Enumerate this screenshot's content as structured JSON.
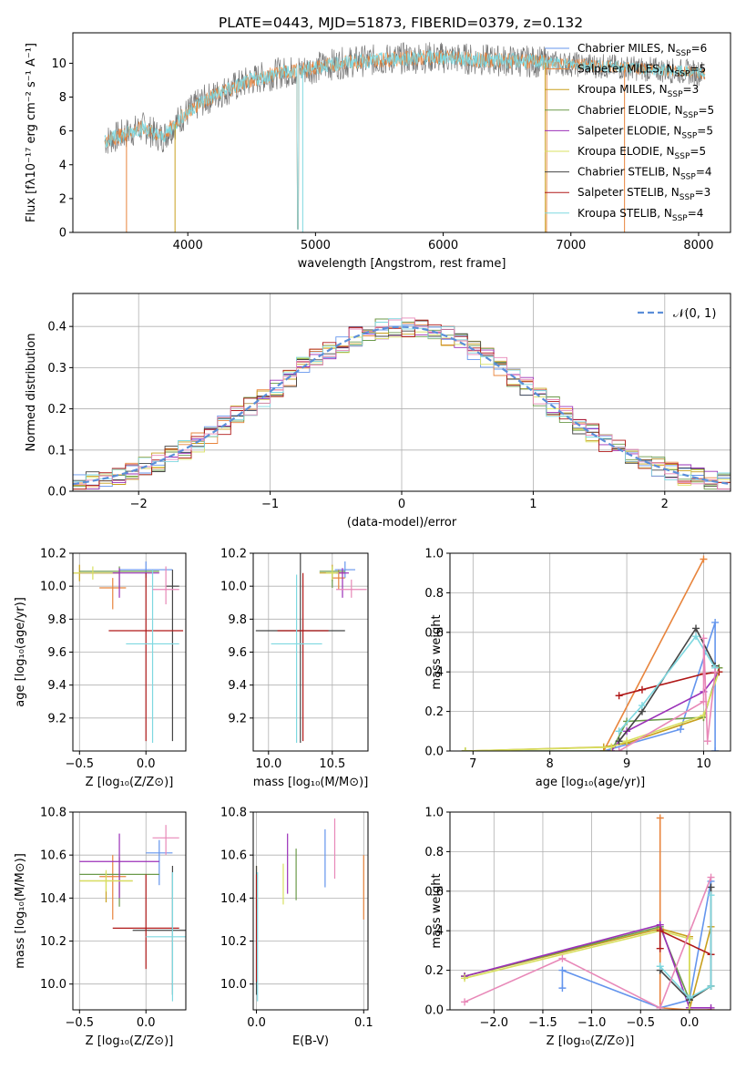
{
  "figure": {
    "title": "PLATE=0443, MJD=51873, FIBERID=0379, z=0.132"
  },
  "chart_data": [
    {
      "id": "spectrum",
      "type": "line",
      "title": "PLATE=0443, MJD=51873, FIBERID=0379, z=0.132",
      "xlabel": "wavelength [Angstrom, rest frame]",
      "ylabel": "Flux [fλ10⁻¹⁷ erg cm⁻² s⁻¹ A⁻¹]",
      "xlim": [
        3100,
        8250
      ],
      "ylim": [
        0,
        11.8
      ],
      "xticks": [
        "4000",
        "5000",
        "6000",
        "7000",
        "8000"
      ],
      "yticks": [
        "0",
        "2",
        "4",
        "6",
        "8",
        "10"
      ],
      "grid": false,
      "legend_position": "right",
      "spectrum_outline": {
        "x": [
          3350,
          3500,
          3650,
          3800,
          3950,
          4100,
          4300,
          4500,
          4700,
          4900,
          5100,
          5300,
          5500,
          5700,
          5900,
          6100,
          6300,
          6500,
          6700,
          6900,
          7100,
          7300,
          7500,
          7700,
          7900,
          8050
        ],
        "y": [
          5.4,
          5.8,
          6.2,
          5.6,
          6.8,
          7.7,
          8.4,
          9.0,
          9.4,
          9.6,
          9.9,
          10.1,
          10.2,
          10.3,
          10.35,
          10.3,
          10.2,
          10.15,
          10.1,
          10.0,
          9.9,
          9.8,
          9.7,
          9.6,
          9.5,
          9.4
        ]
      },
      "series": [
        {
          "name": "Chabrier MILES, N_SSP=6",
          "color": "#6495ed",
          "legend": [
            "Chabrier MILES, N",
            "SSP",
            "=6"
          ]
        },
        {
          "name": "Salpeter MILES, N_SSP=5",
          "color": "#e8843c",
          "legend": [
            "Salpeter MILES, N",
            "SSP",
            "=5"
          ]
        },
        {
          "name": "Kroupa MILES, N_SSP=3",
          "color": "#c8a01e",
          "legend": [
            "Kroupa MILES, N",
            "SSP",
            "=3"
          ]
        },
        {
          "name": "Chabrier ELODIE, N_SSP=5",
          "color": "#6b9a4a",
          "legend": [
            "Chabrier ELODIE, N",
            "SSP",
            "=5"
          ]
        },
        {
          "name": "Salpeter ELODIE, N_SSP=5",
          "color": "#9b30b8",
          "legend": [
            "Salpeter ELODIE, N",
            "SSP",
            "=5"
          ]
        },
        {
          "name": "Kroupa ELODIE, N_SSP=5",
          "color": "#d8e060",
          "legend": [
            "Kroupa ELODIE, N",
            "SSP",
            "=5"
          ]
        },
        {
          "name": "Chabrier STELIB, N_SSP=4",
          "color": "#444444",
          "legend": [
            "Chabrier STELIB, N",
            "SSP",
            "=4"
          ]
        },
        {
          "name": "Salpeter STELIB, N_SSP=3",
          "color": "#b01818",
          "legend": [
            "Salpeter STELIB, N",
            "SSP",
            "=3"
          ]
        },
        {
          "name": "Kroupa STELIB, N_SSP=4",
          "color": "#7ed8e0",
          "legend": [
            "Kroupa STELIB, N",
            "SSP",
            "=4"
          ]
        }
      ]
    },
    {
      "id": "residuals",
      "type": "bar",
      "xlabel": "(data-model)/error",
      "ylabel": "Normed distribution",
      "xlim": [
        -2.5,
        2.5
      ],
      "ylim": [
        0,
        0.48
      ],
      "xticks": [
        "−2",
        "−1",
        "0",
        "1",
        "2"
      ],
      "yticks": [
        "0.0",
        "0.1",
        "0.2",
        "0.3",
        "0.4"
      ],
      "grid": true,
      "legend_position": "top-right",
      "legend_label": "𝒩(0, 1)",
      "bin_width": 0.1,
      "histogram_colors": [
        "#6495ed",
        "#e8843c",
        "#c8a01e",
        "#6b9a4a",
        "#9b30b8",
        "#d8e060",
        "#444444",
        "#b01818",
        "#7ed8e0",
        "#e888b8"
      ]
    },
    {
      "id": "age-vs-Z",
      "type": "scatter",
      "xlabel": "Z [log₁₀(Z/Z⊙)]",
      "ylabel": "age  [log₁₀(age/yr)]",
      "xlim": [
        -0.55,
        0.3
      ],
      "ylim": [
        9.0,
        10.2
      ],
      "xticks": [
        "−0.5",
        "0.0"
      ],
      "yticks": [
        "9.2",
        "9.4",
        "9.6",
        "9.8",
        "10.0",
        "10.2"
      ],
      "grid": true,
      "points": [
        {
          "x": 0.0,
          "y": 10.1,
          "xerr": 0.2,
          "yerr_lo": 0.05,
          "yerr_hi": 0.05,
          "color": "#6495ed"
        },
        {
          "x": -0.25,
          "y": 9.99,
          "xerr": 0.1,
          "yerr_lo": 0.13,
          "yerr_hi": 0.06,
          "color": "#e8843c"
        },
        {
          "x": -0.5,
          "y": 10.08,
          "xerr": 0.3,
          "yerr_lo": 0.05,
          "yerr_hi": 0.05,
          "color": "#c8a01e"
        },
        {
          "x": -0.2,
          "y": 10.09,
          "xerr": 0.3,
          "yerr_lo": 0.1,
          "yerr_hi": 0.03,
          "color": "#6b9a4a"
        },
        {
          "x": -0.2,
          "y": 10.08,
          "xerr": 0.3,
          "yerr_lo": 0.15,
          "yerr_hi": 0.03,
          "color": "#9b30b8"
        },
        {
          "x": -0.4,
          "y": 10.08,
          "xerr": 0.15,
          "yerr_lo": 0.04,
          "yerr_hi": 0.04,
          "color": "#d8e060"
        },
        {
          "x": 0.2,
          "y": 10.0,
          "xerr": 0.05,
          "yerr_lo": 0.94,
          "yerr_hi": 0.1,
          "color": "#444444"
        },
        {
          "x": 0.0,
          "y": 9.73,
          "xerr": 0.28,
          "yerr_lo": 0.67,
          "yerr_hi": 0.35,
          "color": "#b01818"
        },
        {
          "x": 0.05,
          "y": 9.65,
          "xerr": 0.2,
          "yerr_lo": 0.6,
          "yerr_hi": 0.45,
          "color": "#7ed8e0"
        },
        {
          "x": 0.15,
          "y": 9.98,
          "xerr": 0.1,
          "yerr_lo": 0.09,
          "yerr_hi": 0.14,
          "color": "#e888b8"
        }
      ]
    },
    {
      "id": "age-vs-mass",
      "type": "scatter",
      "xlabel": "mass [log₁₀(M/M⊙)]",
      "ylabel": "",
      "xlim": [
        9.88,
        10.78
      ],
      "ylim": [
        9.0,
        10.2
      ],
      "xticks": [
        "10.0",
        "10.5"
      ],
      "yticks": [
        "9.2",
        "9.4",
        "9.6",
        "9.8",
        "10.0",
        "10.2"
      ],
      "grid": true,
      "points": [
        {
          "x": 10.6,
          "y": 10.1,
          "xerr": 0.08,
          "yerr_lo": 0.05,
          "yerr_hi": 0.05,
          "color": "#6495ed"
        },
        {
          "x": 10.55,
          "y": 10.05,
          "xerr": 0.05,
          "yerr_lo": 0.07,
          "yerr_hi": 0.05,
          "color": "#e8843c"
        },
        {
          "x": 10.5,
          "y": 10.08,
          "xerr": 0.1,
          "yerr_lo": 0.05,
          "yerr_hi": 0.05,
          "color": "#c8a01e"
        },
        {
          "x": 10.5,
          "y": 10.09,
          "xerr": 0.1,
          "yerr_lo": 0.1,
          "yerr_hi": 0.03,
          "color": "#6b9a4a"
        },
        {
          "x": 10.58,
          "y": 10.08,
          "xerr": 0.05,
          "yerr_lo": 0.15,
          "yerr_hi": 0.03,
          "color": "#9b30b8"
        },
        {
          "x": 10.5,
          "y": 10.08,
          "xerr": 0.05,
          "yerr_lo": 0.04,
          "yerr_hi": 0.04,
          "color": "#d8e060"
        },
        {
          "x": 10.25,
          "y": 9.73,
          "xerr": 0.35,
          "yerr_lo": 0.68,
          "yerr_hi": 0.5,
          "color": "#444444"
        },
        {
          "x": 10.27,
          "y": 9.73,
          "xerr": 0.2,
          "yerr_lo": 0.67,
          "yerr_hi": 0.35,
          "color": "#b01818"
        },
        {
          "x": 10.22,
          "y": 9.65,
          "xerr": 0.2,
          "yerr_lo": 0.6,
          "yerr_hi": 0.42,
          "color": "#7ed8e0"
        },
        {
          "x": 10.65,
          "y": 9.98,
          "xerr": 0.12,
          "yerr_lo": 0.05,
          "yerr_hi": 0.06,
          "color": "#e888b8"
        }
      ]
    },
    {
      "id": "massweight-vs-age",
      "type": "line",
      "xlabel": "age  [log₁₀(age/yr)]",
      "ylabel": "mass weight",
      "xlim": [
        6.7,
        10.35
      ],
      "ylim": [
        0,
        1.0
      ],
      "xticks": [
        "7",
        "8",
        "9",
        "10"
      ],
      "yticks": [
        "0.0",
        "0.2",
        "0.4",
        "0.6",
        "0.8",
        "1.0"
      ],
      "grid": true,
      "series": [
        {
          "color": "#6495ed",
          "x": [
            8.7,
            9.7,
            10.15,
            10.15
          ],
          "y": [
            0.0,
            0.11,
            0.65,
            0.0
          ]
        },
        {
          "color": "#e8843c",
          "x": [
            8.7,
            10.0
          ],
          "y": [
            0.0,
            0.97
          ]
        },
        {
          "color": "#c8a01e",
          "x": [
            6.9,
            8.7,
            9.0,
            10.0,
            10.2
          ],
          "y": [
            0.0,
            0.02,
            0.04,
            0.17,
            0.42
          ]
        },
        {
          "color": "#6b9a4a",
          "x": [
            6.9,
            8.8,
            9.0,
            10.0,
            10.2
          ],
          "y": [
            0.0,
            0.0,
            0.15,
            0.17,
            0.42
          ]
        },
        {
          "color": "#9b30b8",
          "x": [
            8.8,
            9.0,
            10.0,
            10.2
          ],
          "y": [
            0.0,
            0.1,
            0.3,
            0.4
          ]
        },
        {
          "color": "#d8e060",
          "x": [
            6.9,
            8.8,
            9.0,
            10.0,
            10.2
          ],
          "y": [
            0.0,
            0.02,
            0.05,
            0.18,
            0.4
          ]
        },
        {
          "color": "#444444",
          "x": [
            8.9,
            9.2,
            9.9,
            10.15
          ],
          "y": [
            0.05,
            0.2,
            0.62,
            0.43
          ]
        },
        {
          "color": "#b01818",
          "x": [
            8.9,
            9.2,
            10.0,
            10.2
          ],
          "y": [
            0.28,
            0.31,
            0.39,
            0.4
          ]
        },
        {
          "color": "#7ed8e0",
          "x": [
            8.9,
            9.2,
            9.9,
            10.15
          ],
          "y": [
            0.1,
            0.23,
            0.58,
            0.42
          ]
        },
        {
          "color": "#e888b8",
          "x": [
            8.9,
            10.0,
            10.0,
            10.05,
            10.15
          ],
          "y": [
            0.0,
            0.25,
            0.57,
            0.05,
            0.4
          ]
        }
      ]
    },
    {
      "id": "mass-vs-Z",
      "type": "scatter",
      "xlabel": "Z [log₁₀(Z/Z⊙)]",
      "ylabel": "mass [log₁₀(M/M⊙)]",
      "xlim": [
        -0.55,
        0.3
      ],
      "ylim": [
        9.88,
        10.8
      ],
      "xticks": [
        "−0.5",
        "0.0"
      ],
      "yticks": [
        "10.0",
        "10.2",
        "10.4",
        "10.6",
        "10.8"
      ],
      "grid": true,
      "points": [
        {
          "x": 0.1,
          "y": 10.61,
          "xerr": 0.1,
          "yerr_lo": 0.15,
          "yerr_hi": 0.06,
          "color": "#6495ed"
        },
        {
          "x": -0.25,
          "y": 10.5,
          "xerr": 0.1,
          "yerr_lo": 0.2,
          "yerr_hi": 0.1,
          "color": "#e8843c"
        },
        {
          "x": -0.3,
          "y": 10.48,
          "xerr": 0.2,
          "yerr_lo": 0.1,
          "yerr_hi": 0.04,
          "color": "#c8a01e"
        },
        {
          "x": -0.2,
          "y": 10.51,
          "xerr": 0.3,
          "yerr_lo": 0.15,
          "yerr_hi": 0.08,
          "color": "#6b9a4a"
        },
        {
          "x": -0.2,
          "y": 10.57,
          "xerr": 0.3,
          "yerr_lo": 0.17,
          "yerr_hi": 0.13,
          "color": "#9b30b8"
        },
        {
          "x": -0.3,
          "y": 10.48,
          "xerr": 0.2,
          "yerr_lo": 0.05,
          "yerr_hi": 0.05,
          "color": "#d8e060"
        },
        {
          "x": 0.2,
          "y": 10.25,
          "xerr": 0.3,
          "yerr_lo": 0.3,
          "yerr_hi": 0.3,
          "color": "#444444"
        },
        {
          "x": 0.0,
          "y": 10.26,
          "xerr": 0.25,
          "yerr_lo": 0.19,
          "yerr_hi": 0.25,
          "color": "#b01818"
        },
        {
          "x": 0.2,
          "y": 10.22,
          "xerr": 0.2,
          "yerr_lo": 0.3,
          "yerr_hi": 0.3,
          "color": "#7ed8e0"
        },
        {
          "x": 0.15,
          "y": 10.68,
          "xerr": 0.1,
          "yerr_lo": 0.08,
          "yerr_hi": 0.06,
          "color": "#e888b8"
        }
      ]
    },
    {
      "id": "mass-vs-EBV",
      "type": "scatter",
      "xlabel": "E(B-V)",
      "ylabel": "",
      "xlim": [
        -0.003,
        0.104
      ],
      "ylim": [
        9.88,
        10.8
      ],
      "xticks": [
        "0.0",
        "0.1"
      ],
      "yticks": [
        "10.0",
        "10.2",
        "10.4",
        "10.6",
        "10.8"
      ],
      "grid": true,
      "points": [
        {
          "x": 0.064,
          "y": 10.6,
          "xerr": 0,
          "yerr_lo": 0.15,
          "yerr_hi": 0.12,
          "color": "#6495ed"
        },
        {
          "x": 0.1,
          "y": 10.5,
          "xerr": 0,
          "yerr_lo": 0.2,
          "yerr_hi": 0.1,
          "color": "#e8843c"
        },
        {
          "x": 0.0,
          "y": 10.45,
          "xerr": 0,
          "yerr_lo": 0.1,
          "yerr_hi": 0.1,
          "color": "#c8a01e"
        },
        {
          "x": 0.037,
          "y": 10.51,
          "xerr": 0,
          "yerr_lo": 0.12,
          "yerr_hi": 0.12,
          "color": "#6b9a4a"
        },
        {
          "x": 0.029,
          "y": 10.57,
          "xerr": 0,
          "yerr_lo": 0.15,
          "yerr_hi": 0.13,
          "color": "#9b30b8"
        },
        {
          "x": 0.025,
          "y": 10.48,
          "xerr": 0,
          "yerr_lo": 0.11,
          "yerr_hi": 0.08,
          "color": "#d8e060"
        },
        {
          "x": 0.0,
          "y": 10.25,
          "xerr": 0,
          "yerr_lo": 0.3,
          "yerr_hi": 0.3,
          "color": "#444444"
        },
        {
          "x": 0.0,
          "y": 10.26,
          "xerr": 0,
          "yerr_lo": 0.25,
          "yerr_hi": 0.25,
          "color": "#b01818"
        },
        {
          "x": 0.001,
          "y": 10.22,
          "xerr": 0,
          "yerr_lo": 0.3,
          "yerr_hi": 0.3,
          "color": "#7ed8e0"
        },
        {
          "x": 0.073,
          "y": 10.62,
          "xerr": 0,
          "yerr_lo": 0.13,
          "yerr_hi": 0.15,
          "color": "#e888b8"
        }
      ]
    },
    {
      "id": "massweight-vs-Z",
      "type": "line",
      "xlabel": "Z [log₁₀(Z/Z⊙)]",
      "ylabel": "mass weight",
      "xlim": [
        -2.45,
        0.42
      ],
      "ylim": [
        0,
        1.0
      ],
      "xticks": [
        "−2.0",
        "−1.5",
        "−1.0",
        "−0.5",
        "0.0"
      ],
      "yticks": [
        "0.0",
        "0.2",
        "0.4",
        "0.6",
        "0.8",
        "1.0"
      ],
      "grid": true,
      "series": [
        {
          "color": "#6495ed",
          "x": [
            -1.3,
            -1.3,
            -0.3,
            0.0,
            0.22
          ],
          "y": [
            0.11,
            0.2,
            0.01,
            0.05,
            0.65
          ]
        },
        {
          "color": "#e8843c",
          "x": [
            -0.3,
            -0.3,
            0.0,
            0.22
          ],
          "y": [
            0.97,
            0.01,
            0.0,
            0.0
          ]
        },
        {
          "color": "#c8a01e",
          "x": [
            -2.3,
            -0.3,
            0.0,
            0.0,
            0.22
          ],
          "y": [
            0.17,
            0.41,
            0.37,
            0.0,
            0.42
          ]
        },
        {
          "color": "#6b9a4a",
          "x": [
            -2.3,
            -0.3,
            0.0,
            0.22
          ],
          "y": [
            0.17,
            0.42,
            0.05,
            0.12
          ]
        },
        {
          "color": "#9b30b8",
          "x": [
            -2.3,
            -0.3,
            0.0,
            0.22
          ],
          "y": [
            0.17,
            0.43,
            0.01,
            0.01
          ]
        },
        {
          "color": "#d8e060",
          "x": [
            -2.3,
            -0.3,
            0.0,
            0.0
          ],
          "y": [
            0.16,
            0.4,
            0.36,
            0.0
          ]
        },
        {
          "color": "#444444",
          "x": [
            -0.3,
            0.0,
            0.22,
            0.22
          ],
          "y": [
            0.2,
            0.05,
            0.12,
            0.62
          ]
        },
        {
          "color": "#b01818",
          "x": [
            -0.3,
            -0.3,
            0.22
          ],
          "y": [
            0.31,
            0.4,
            0.28
          ]
        },
        {
          "color": "#7ed8e0",
          "x": [
            -0.3,
            0.0,
            0.22,
            0.22
          ],
          "y": [
            0.22,
            0.06,
            0.12,
            0.58
          ]
        },
        {
          "color": "#e888b8",
          "x": [
            -2.3,
            -1.3,
            -0.3,
            0.22
          ],
          "y": [
            0.04,
            0.26,
            0.01,
            0.67
          ]
        }
      ]
    }
  ]
}
